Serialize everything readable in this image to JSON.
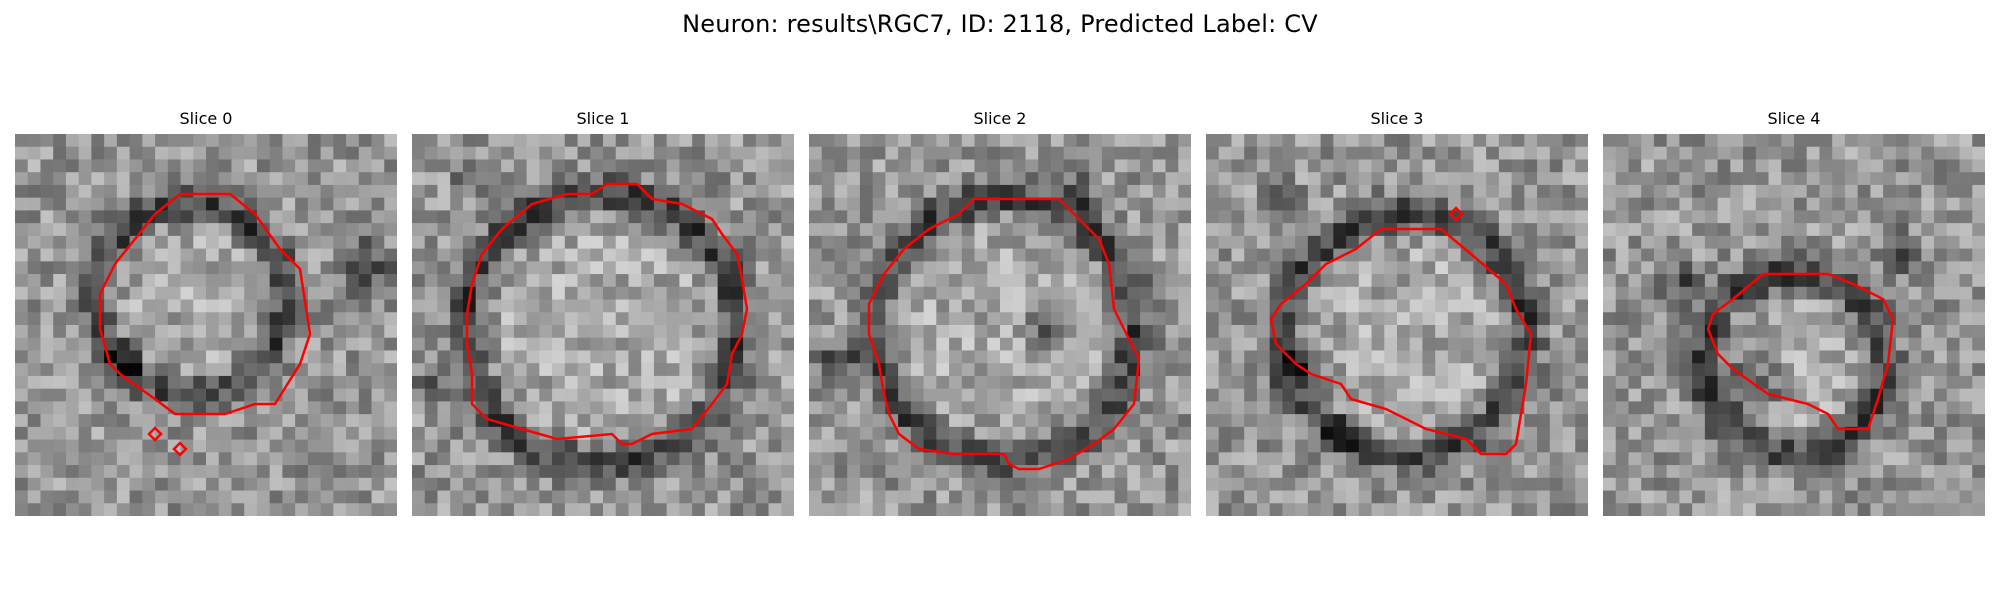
{
  "suptitle": "Neuron: results\\RGC7, ID: 2118, Predicted Label: CV",
  "overlay_color": "#ff0000",
  "panels": [
    {
      "title": "Slice 0"
    },
    {
      "title": "Slice 1"
    },
    {
      "title": "Slice 2"
    },
    {
      "title": "Slice 3"
    },
    {
      "title": "Slice 4"
    }
  ]
}
